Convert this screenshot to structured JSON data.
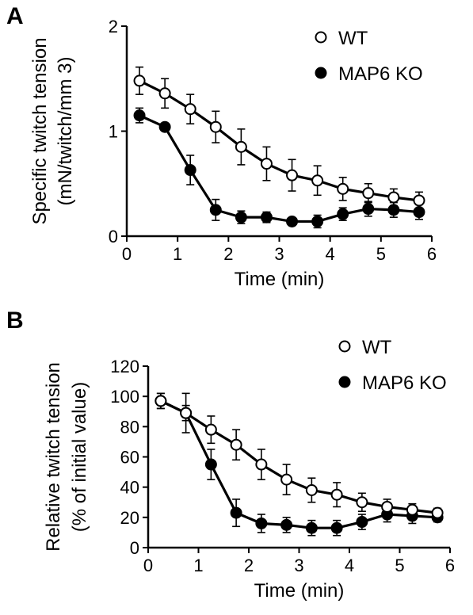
{
  "chart_data": [
    {
      "panel": "A",
      "type": "line",
      "xlabel": "Time (min)",
      "ylabel": [
        "Specific twitch tension",
        "(mN/twitch/mm 3)"
      ],
      "xlim": [
        0,
        6
      ],
      "ylim": [
        0,
        2
      ],
      "xticks": [
        0,
        1,
        2,
        3,
        4,
        5,
        6
      ],
      "yticks": [
        0,
        1,
        2
      ],
      "legend_position": "top-right",
      "x": [
        0.25,
        0.75,
        1.25,
        1.75,
        2.25,
        2.75,
        3.25,
        3.75,
        4.25,
        4.75,
        5.25,
        5.75
      ],
      "series": [
        {
          "name": "WT",
          "marker": "open-circle",
          "values": [
            1.48,
            1.36,
            1.21,
            1.04,
            0.85,
            0.69,
            0.58,
            0.53,
            0.45,
            0.41,
            0.37,
            0.34
          ],
          "errors": [
            0.13,
            0.14,
            0.14,
            0.15,
            0.17,
            0.16,
            0.15,
            0.14,
            0.11,
            0.09,
            0.08,
            0.08
          ]
        },
        {
          "name": "MAP6 KO",
          "marker": "filled-circle",
          "values": [
            1.15,
            1.04,
            0.63,
            0.25,
            0.18,
            0.18,
            0.14,
            0.14,
            0.21,
            0.26,
            0.25,
            0.23
          ],
          "errors": [
            0.07,
            0.02,
            0.14,
            0.1,
            0.06,
            0.05,
            0.03,
            0.06,
            0.06,
            0.07,
            0.07,
            0.07
          ]
        }
      ]
    },
    {
      "panel": "B",
      "type": "line",
      "xlabel": "Time (min)",
      "ylabel": [
        "Relative twitch tension",
        "(% of initial value)"
      ],
      "xlim": [
        0,
        6
      ],
      "ylim": [
        0,
        120
      ],
      "xticks": [
        0,
        1,
        2,
        3,
        4,
        5,
        6
      ],
      "yticks": [
        0,
        20,
        40,
        60,
        80,
        100,
        120
      ],
      "legend_position": "top-right",
      "x": [
        0.25,
        0.75,
        1.25,
        1.75,
        2.25,
        2.75,
        3.25,
        3.75,
        4.25,
        4.75,
        5.25,
        5.75
      ],
      "series": [
        {
          "name": "WT",
          "marker": "open-circle",
          "values": [
            97,
            89,
            78,
            68,
            55,
            45,
            38,
            35,
            30,
            27,
            25,
            23
          ],
          "errors": [
            5,
            13,
            9,
            10,
            10,
            10,
            8,
            8,
            6,
            5,
            4,
            3
          ]
        },
        {
          "name": "MAP6 KO",
          "marker": "filled-circle",
          "values": [
            97,
            89,
            55,
            23,
            16,
            15,
            13,
            13,
            17,
            22,
            21,
            20
          ],
          "errors": [
            5,
            5,
            10,
            9,
            6,
            5,
            5,
            5,
            5,
            5,
            5,
            3
          ]
        }
      ]
    }
  ]
}
